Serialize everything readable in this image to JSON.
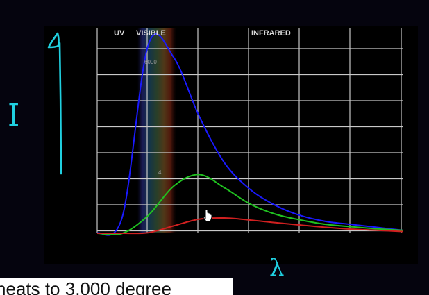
{
  "chart_data": {
    "type": "line",
    "bands": [
      "UV",
      "VISIBLE",
      "INFRARED"
    ],
    "x": [
      0,
      0.5,
      1,
      1.5,
      2,
      2.5,
      3,
      3.5,
      4,
      4.5,
      5,
      5.5,
      6
    ],
    "xlim": [
      0,
      6
    ],
    "ylim": [
      0,
      7
    ],
    "grid": true,
    "series": [
      {
        "name": "6000",
        "values": [
          0,
          0.6,
          6.4,
          6.0,
          4.0,
          2.4,
          1.5,
          0.95,
          0.6,
          0.4,
          0.3,
          0.2,
          0.1
        ],
        "color": "#1a1aff"
      },
      {
        "name": "4",
        "values": [
          0,
          0,
          0.6,
          1.6,
          2.0,
          1.55,
          1.0,
          0.65,
          0.45,
          0.3,
          0.22,
          0.15,
          0.1
        ],
        "color": "#20c020"
      },
      {
        "name": "",
        "values": [
          0,
          0,
          0.02,
          0.25,
          0.48,
          0.52,
          0.45,
          0.36,
          0.28,
          0.2,
          0.14,
          0.1,
          0.06
        ],
        "color": "#d02020"
      }
    ],
    "annotations": {
      "y_axis": "I",
      "x_axis": "λ"
    }
  },
  "caption": "heats to 3,000 degree",
  "colors": {
    "background": "#05040e",
    "panel": "#000000",
    "grid": "#c8c8c8",
    "annotation_ink": "#20d0e0"
  },
  "cursor_icon": "hand-pointer-icon"
}
